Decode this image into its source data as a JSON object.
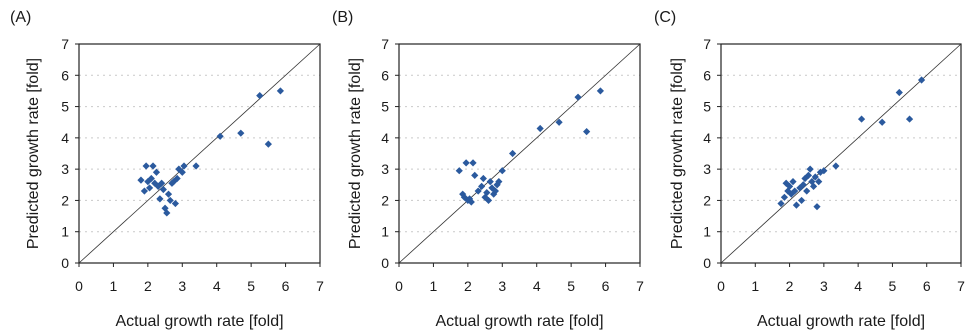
{
  "chart_data": [
    {
      "type": "scatter",
      "panel_label": "(A)",
      "xlabel": "Actual growth rate [fold]",
      "ylabel": "Predicted growth rate [fold]",
      "xlim": [
        0,
        7
      ],
      "ylim": [
        0,
        7
      ],
      "xticks": [
        "0",
        "1",
        "2",
        "3",
        "4",
        "5",
        "6",
        "7"
      ],
      "yticks": [
        "0",
        "1",
        "2",
        "3",
        "4",
        "5",
        "6",
        "7"
      ],
      "diagonal": true,
      "marker_color": "#2b5a9e",
      "points": [
        [
          1.8,
          2.65
        ],
        [
          1.9,
          2.3
        ],
        [
          1.95,
          3.1
        ],
        [
          2.0,
          2.6
        ],
        [
          2.05,
          2.4
        ],
        [
          2.1,
          2.7
        ],
        [
          2.15,
          3.1
        ],
        [
          2.2,
          2.55
        ],
        [
          2.25,
          2.9
        ],
        [
          2.3,
          2.45
        ],
        [
          2.35,
          2.05
        ],
        [
          2.4,
          2.55
        ],
        [
          2.45,
          2.35
        ],
        [
          2.5,
          1.75
        ],
        [
          2.55,
          1.6
        ],
        [
          2.6,
          2.2
        ],
        [
          2.65,
          2.0
        ],
        [
          2.7,
          2.55
        ],
        [
          2.75,
          2.6
        ],
        [
          2.8,
          1.9
        ],
        [
          2.85,
          2.7
        ],
        [
          2.9,
          3.0
        ],
        [
          3.0,
          2.9
        ],
        [
          3.05,
          3.1
        ],
        [
          3.4,
          3.1
        ],
        [
          4.1,
          4.05
        ],
        [
          4.7,
          4.15
        ],
        [
          5.25,
          5.35
        ],
        [
          5.5,
          3.8
        ],
        [
          5.85,
          5.5
        ]
      ]
    },
    {
      "type": "scatter",
      "panel_label": "(B)",
      "xlabel": "Actual growth rate [fold]",
      "ylabel": "Predicted growth rate [fold]",
      "xlim": [
        0,
        7
      ],
      "ylim": [
        0,
        7
      ],
      "xticks": [
        "0",
        "1",
        "2",
        "3",
        "4",
        "5",
        "6",
        "7"
      ],
      "yticks": [
        "0",
        "1",
        "2",
        "3",
        "4",
        "5",
        "6",
        "7"
      ],
      "diagonal": true,
      "marker_color": "#2b5a9e",
      "points": [
        [
          1.75,
          2.95
        ],
        [
          1.85,
          2.2
        ],
        [
          1.9,
          2.1
        ],
        [
          1.95,
          3.2
        ],
        [
          2.0,
          2.0
        ],
        [
          2.05,
          2.05
        ],
        [
          2.1,
          1.95
        ],
        [
          2.15,
          3.2
        ],
        [
          2.2,
          2.8
        ],
        [
          2.3,
          2.3
        ],
        [
          2.4,
          2.45
        ],
        [
          2.45,
          2.7
        ],
        [
          2.5,
          2.1
        ],
        [
          2.55,
          2.25
        ],
        [
          2.6,
          2.0
        ],
        [
          2.65,
          2.6
        ],
        [
          2.7,
          2.4
        ],
        [
          2.75,
          2.2
        ],
        [
          2.8,
          2.3
        ],
        [
          2.85,
          2.5
        ],
        [
          2.9,
          2.6
        ],
        [
          3.0,
          2.95
        ],
        [
          3.3,
          3.5
        ],
        [
          4.1,
          4.3
        ],
        [
          4.65,
          4.5
        ],
        [
          5.2,
          5.3
        ],
        [
          5.45,
          4.2
        ],
        [
          5.85,
          5.5
        ]
      ]
    },
    {
      "type": "scatter",
      "panel_label": "(C)",
      "xlabel": "Actual growth rate [fold]",
      "ylabel": "Predicted growth rate [fold]",
      "xlim": [
        0,
        7
      ],
      "ylim": [
        0,
        7
      ],
      "xticks": [
        "0",
        "1",
        "2",
        "3",
        "4",
        "5",
        "6",
        "7"
      ],
      "yticks": [
        "0",
        "1",
        "2",
        "3",
        "4",
        "5",
        "6",
        "7"
      ],
      "diagonal": true,
      "marker_color": "#2b5a9e",
      "points": [
        [
          1.75,
          1.9
        ],
        [
          1.85,
          2.1
        ],
        [
          1.9,
          2.55
        ],
        [
          1.95,
          2.3
        ],
        [
          2.0,
          2.45
        ],
        [
          2.05,
          2.2
        ],
        [
          2.1,
          2.6
        ],
        [
          2.15,
          2.3
        ],
        [
          2.2,
          1.85
        ],
        [
          2.3,
          2.4
        ],
        [
          2.35,
          2.0
        ],
        [
          2.4,
          2.5
        ],
        [
          2.45,
          2.7
        ],
        [
          2.5,
          2.3
        ],
        [
          2.55,
          2.8
        ],
        [
          2.6,
          3.0
        ],
        [
          2.65,
          2.6
        ],
        [
          2.7,
          2.45
        ],
        [
          2.75,
          2.75
        ],
        [
          2.8,
          1.8
        ],
        [
          2.85,
          2.6
        ],
        [
          2.9,
          2.9
        ],
        [
          3.0,
          2.95
        ],
        [
          3.35,
          3.1
        ],
        [
          4.1,
          4.6
        ],
        [
          4.7,
          4.5
        ],
        [
          5.2,
          5.45
        ],
        [
          5.5,
          4.6
        ],
        [
          5.85,
          5.85
        ]
      ]
    }
  ]
}
